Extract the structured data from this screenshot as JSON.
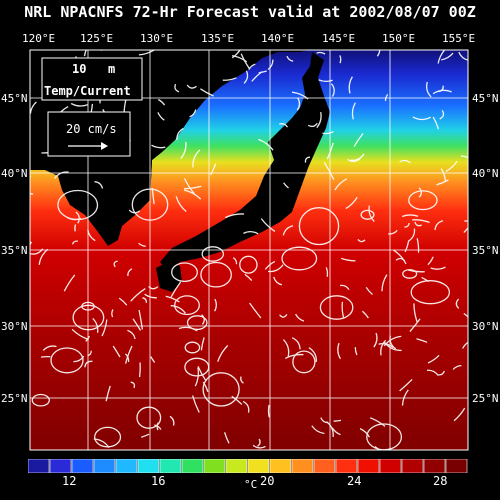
{
  "title": "NRL NPACNFS 72-Hr Forecast valid at 2002/08/07 00Z",
  "lon_labels": [
    "120°E",
    "125°E",
    "130°E",
    "135°E",
    "140°E",
    "145°E",
    "150°E",
    "155°E"
  ],
  "lat_labels": [
    "45°N",
    "40°N",
    "35°N",
    "30°N",
    "25°N"
  ],
  "legend": {
    "depth_value": "10",
    "depth_unit": "m",
    "field_label": "Temp/Current",
    "vector_scale": "20 cm/s"
  },
  "colorbar": {
    "labels": [
      "12",
      "16",
      "20",
      "24",
      "28"
    ],
    "unit": "°C",
    "colors": [
      "#1a1aa0",
      "#2a2ad8",
      "#1a5cff",
      "#1e8cff",
      "#20b8ff",
      "#20e0f0",
      "#20e8b0",
      "#30e060",
      "#80e020",
      "#c8e820",
      "#f0e020",
      "#ffc020",
      "#ff9020",
      "#ff6020",
      "#ff3010",
      "#f01000",
      "#d00000",
      "#b00000",
      "#900000",
      "#780000"
    ]
  }
}
